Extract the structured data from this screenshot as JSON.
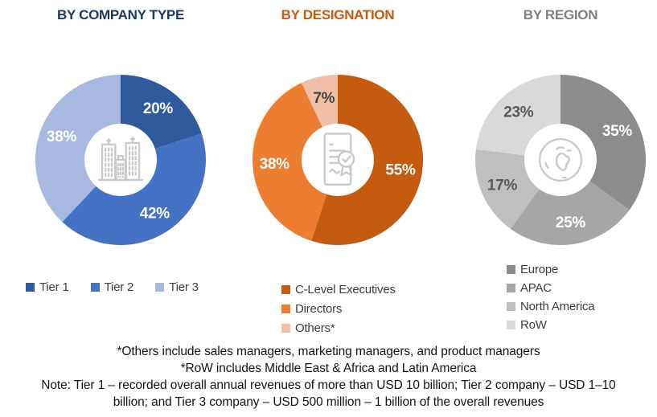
{
  "chart_data": [
    {
      "type": "pie",
      "subtype": "donut",
      "title": "BY COMPANY TYPE",
      "title_color": "#1F3864",
      "center_icon": "buildings-icon",
      "categories": [
        "Tier 1",
        "Tier 2",
        "Tier 3"
      ],
      "values": [
        20,
        42,
        38
      ],
      "unit": "%",
      "colors": [
        "#2F5B9E",
        "#4472C4",
        "#A9B8E0"
      ],
      "label_colors": [
        "#FFFFFF",
        "#FFFFFF",
        "#FFFFFF"
      ],
      "legend_position": "bottom-horizontal"
    },
    {
      "type": "pie",
      "subtype": "donut",
      "title": "BY DESIGNATION",
      "title_color": "#C55A11",
      "center_icon": "certificate-icon",
      "categories": [
        "C-Level Executives",
        "Directors",
        "Others*"
      ],
      "values": [
        55,
        38,
        7
      ],
      "unit": "%",
      "colors": [
        "#C55A11",
        "#ED7D31",
        "#F2BFA9"
      ],
      "label_colors": [
        "#FFFFFF",
        "#FFFFFF",
        "#4A4440"
      ],
      "legend_position": "bottom-vertical"
    },
    {
      "type": "pie",
      "subtype": "donut",
      "title": "BY REGION",
      "title_color": "#808080",
      "center_icon": "globe-icon",
      "categories": [
        "Europe",
        "APAC",
        "North America",
        "RoW"
      ],
      "values": [
        35,
        25,
        17,
        23
      ],
      "unit": "%",
      "colors": [
        "#8C8C8C",
        "#A6A6A6",
        "#BFBFBF",
        "#D9D9D9"
      ],
      "label_colors": [
        "#FFFFFF",
        "#FFFFFF",
        "#595959",
        "#595959"
      ],
      "legend_position": "bottom-vertical"
    }
  ],
  "notes": {
    "lines": [
      "*Others include sales managers, marketing managers, and product managers",
      "*RoW includes Middle East & Africa and Latin America",
      "Note: Tier 1 – recorded overall annual revenues of more than USD 10 billion; Tier 2 company – USD 1–10 billion; and Tier 3 company – USD 500 million – 1 billion of the overall revenues"
    ]
  }
}
